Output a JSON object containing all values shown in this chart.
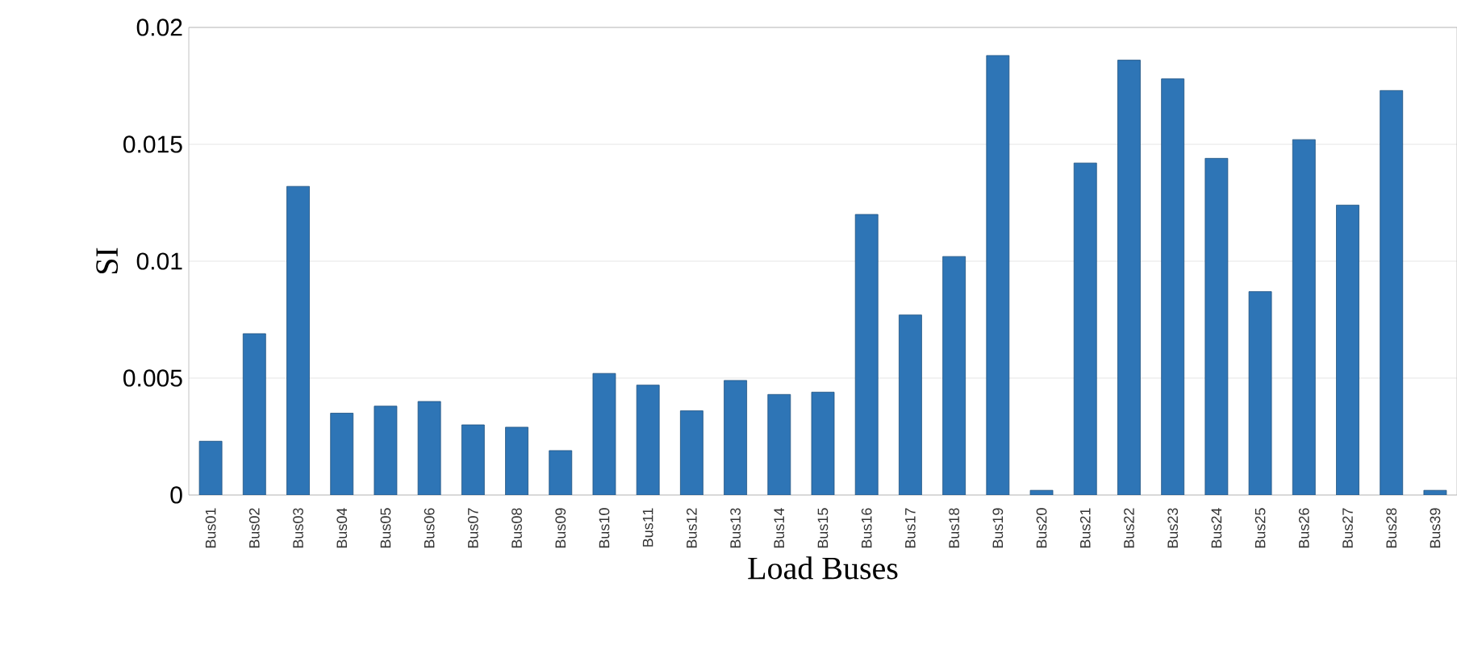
{
  "chart_data": {
    "type": "bar",
    "xlabel": "Load Buses",
    "ylabel": "SI",
    "categories": [
      "Bus01",
      "Bus02",
      "Bus03",
      "Bus04",
      "Bus05",
      "Bus06",
      "Bus07",
      "Bus08",
      "Bus09",
      "Bus10",
      "Bus11",
      "Bus12",
      "Bus13",
      "Bus14",
      "Bus15",
      "Bus16",
      "Bus17",
      "Bus18",
      "Bus19",
      "Bus20",
      "Bus21",
      "Bus22",
      "Bus23",
      "Bus24",
      "Bus25",
      "Bus26",
      "Bus27",
      "Bus28",
      "Bus39"
    ],
    "values": [
      0.0023,
      0.0069,
      0.0132,
      0.0035,
      0.0038,
      0.004,
      0.003,
      0.0029,
      0.0019,
      0.0052,
      0.0047,
      0.0036,
      0.0049,
      0.0043,
      0.0044,
      0.012,
      0.0077,
      0.0102,
      0.0188,
      0.0002,
      0.0142,
      0.0186,
      0.0178,
      0.0144,
      0.0087,
      0.0152,
      0.0124,
      0.0173,
      0.0002
    ],
    "color": "#2e75b6",
    "ylim": [
      0,
      0.02
    ],
    "yticks": [
      0,
      0.005,
      0.01,
      0.015,
      0.02
    ],
    "grid": "y"
  }
}
